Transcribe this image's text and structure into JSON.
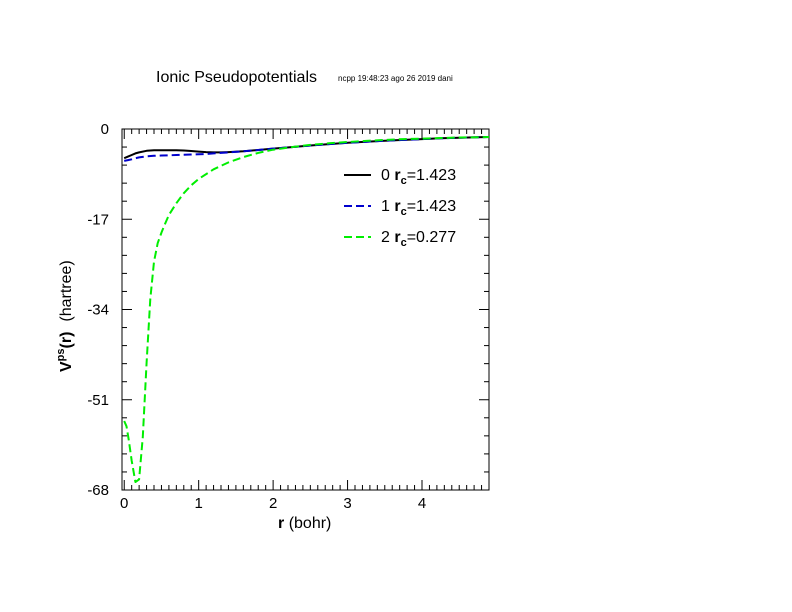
{
  "chart_data": {
    "type": "line",
    "title": "Ionic Pseudopotentials",
    "stamp": "ncpp 19:48:23 ago 26 2019 dani",
    "xlabel": {
      "symbol": "r",
      "unit": "(bohr)"
    },
    "ylabel": {
      "symbol": "V",
      "superscript": "ps",
      "arg": "(r)",
      "unit": "(hartree)"
    },
    "xlim": [
      -0.03,
      4.9
    ],
    "ylim": [
      -68,
      0
    ],
    "xticks": [
      0,
      1,
      2,
      3,
      4
    ],
    "yticks": [
      0,
      -17,
      -34,
      -51,
      -68
    ],
    "legend_position": "upper-right",
    "series": [
      {
        "name": "0",
        "rc_value": "=1.423",
        "color": "#000000",
        "dash": "solid",
        "x": [
          0.0,
          0.05,
          0.1,
          0.15,
          0.2,
          0.3,
          0.4,
          0.5,
          0.6,
          0.7,
          0.8,
          0.9,
          1.0,
          1.1,
          1.2,
          1.3,
          1.4,
          1.6,
          1.8,
          2.0,
          2.25,
          2.5,
          2.75,
          3.0,
          3.25,
          3.5,
          3.75,
          4.0,
          4.25,
          4.5,
          4.75,
          4.9
        ],
        "y": [
          -5.5,
          -5.2,
          -4.9,
          -4.6,
          -4.4,
          -4.1,
          -4.0,
          -4.0,
          -4.0,
          -4.0,
          -4.05,
          -4.15,
          -4.25,
          -4.35,
          -4.4,
          -4.4,
          -4.35,
          -4.2,
          -3.95,
          -3.7,
          -3.4,
          -3.1,
          -2.85,
          -2.6,
          -2.4,
          -2.2,
          -2.05,
          -1.9,
          -1.75,
          -1.65,
          -1.55,
          -1.5
        ]
      },
      {
        "name": "1",
        "rc_value": "=1.423",
        "color": "#0000cc",
        "dash": "dashed",
        "x": [
          0.0,
          0.05,
          0.1,
          0.15,
          0.2,
          0.3,
          0.4,
          0.5,
          0.6,
          0.7,
          0.8,
          0.9,
          1.0,
          1.1,
          1.2,
          1.3,
          1.4,
          1.6,
          1.8,
          2.0,
          2.25,
          2.5,
          2.75,
          3.0,
          3.25,
          3.5,
          3.75,
          4.0,
          4.25,
          4.5,
          4.75,
          4.9
        ],
        "y": [
          -6.0,
          -5.85,
          -5.7,
          -5.5,
          -5.35,
          -5.15,
          -5.05,
          -5.0,
          -4.95,
          -4.9,
          -4.85,
          -4.8,
          -4.75,
          -4.7,
          -4.6,
          -4.5,
          -4.4,
          -4.2,
          -3.95,
          -3.7,
          -3.4,
          -3.1,
          -2.85,
          -2.6,
          -2.4,
          -2.2,
          -2.05,
          -1.9,
          -1.75,
          -1.65,
          -1.55,
          -1.5
        ]
      },
      {
        "name": "2",
        "rc_value": "=0.277",
        "color": "#00ee00",
        "dash": "dashed",
        "x": [
          0.0,
          0.03,
          0.06,
          0.1,
          0.15,
          0.2,
          0.25,
          0.3,
          0.35,
          0.4,
          0.45,
          0.5,
          0.55,
          0.6,
          0.7,
          0.8,
          0.9,
          1.0,
          1.2,
          1.4,
          1.6,
          1.8,
          2.0,
          2.25,
          2.5,
          2.75,
          3.0,
          3.25,
          3.5,
          3.75,
          4.0,
          4.25,
          4.5,
          4.75,
          4.9
        ],
        "y": [
          -55.0,
          -56.0,
          -58.5,
          -62.5,
          -66.5,
          -66.0,
          -58.0,
          -44.0,
          -32.0,
          -25.0,
          -21.5,
          -19.5,
          -17.8,
          -16.2,
          -14.0,
          -12.1,
          -10.6,
          -9.4,
          -7.6,
          -6.3,
          -5.3,
          -4.5,
          -3.9,
          -3.4,
          -3.0,
          -2.7,
          -2.45,
          -2.25,
          -2.05,
          -1.9,
          -1.8,
          -1.7,
          -1.6,
          -1.55,
          -1.5
        ]
      }
    ]
  }
}
